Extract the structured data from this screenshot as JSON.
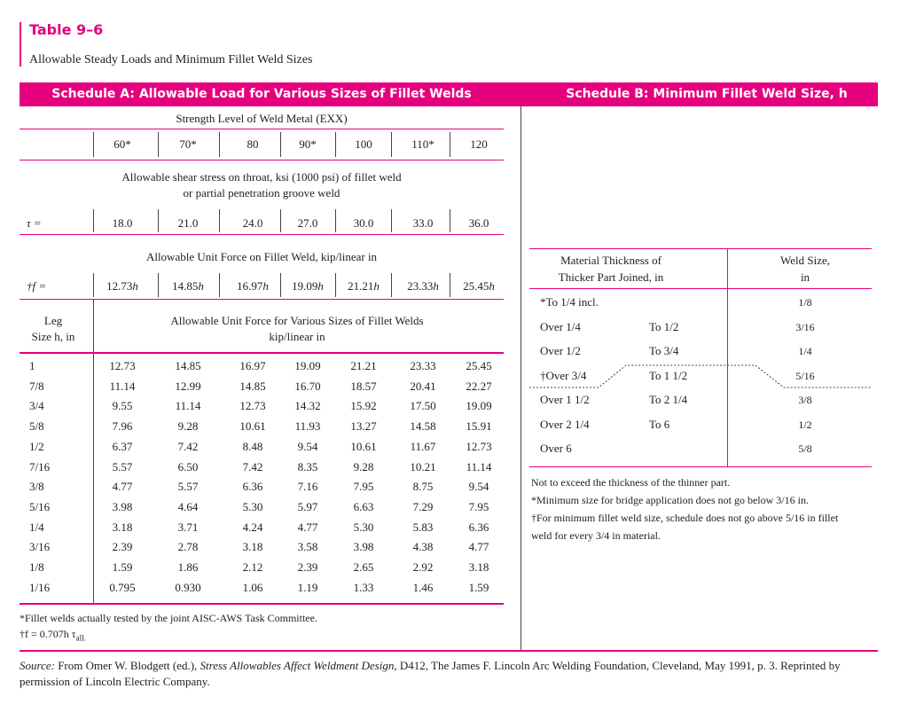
{
  "header": {
    "label": "Table 9–6",
    "title": "Allowable Steady Loads and Minimum Fillet Weld Sizes"
  },
  "schedule_a": {
    "title": "Schedule A: Allowable Load for Various Sizes of Fillet Welds",
    "strength_heading": "Strength Level of Weld Metal (EXX)",
    "strength_levels": [
      "60*",
      "70*",
      "80",
      "90*",
      "100",
      "110*",
      "120"
    ],
    "shear_heading": [
      "Allowable shear stress on throat, ksi (1000 psi) of fillet weld",
      "or partial penetration groove weld"
    ],
    "tau_label": "τ =",
    "tau_values": [
      "18.0",
      "21.0",
      "24.0",
      "27.0",
      "30.0",
      "33.0",
      "36.0"
    ],
    "unit_force_heading": "Allowable Unit Force on Fillet Weld, kip/linear in",
    "f_label": "†f =",
    "f_values": [
      "12.73",
      "14.85",
      "16.97",
      "19.09",
      "21.21",
      "23.33",
      "25.45"
    ],
    "f_symbol": "h",
    "leg_heading": [
      "Leg",
      "Size h, in"
    ],
    "table_heading": [
      "Allowable Unit Force for Various Sizes of Fillet Welds",
      "kip/linear in"
    ],
    "rows": [
      [
        "1",
        "12.73",
        "14.85",
        "16.97",
        "19.09",
        "21.21",
        "23.33",
        "25.45"
      ],
      [
        "7/8",
        "11.14",
        "12.99",
        "14.85",
        "16.70",
        "18.57",
        "20.41",
        "22.27"
      ],
      [
        "3/4",
        "9.55",
        "11.14",
        "12.73",
        "14.32",
        "15.92",
        "17.50",
        "19.09"
      ],
      [
        "5/8",
        "7.96",
        "9.28",
        "10.61",
        "11.93",
        "13.27",
        "14.58",
        "15.91"
      ],
      [
        "1/2",
        "6.37",
        "7.42",
        "8.48",
        "9.54",
        "10.61",
        "11.67",
        "12.73"
      ],
      [
        "7/16",
        "5.57",
        "6.50",
        "7.42",
        "8.35",
        "9.28",
        "10.21",
        "11.14"
      ],
      [
        "3/8",
        "4.77",
        "5.57",
        "6.36",
        "7.16",
        "7.95",
        "8.75",
        "9.54"
      ],
      [
        "5/16",
        "3.98",
        "4.64",
        "5.30",
        "5.97",
        "6.63",
        "7.29",
        "7.95"
      ],
      [
        "1/4",
        "3.18",
        "3.71",
        "4.24",
        "4.77",
        "5.30",
        "5.83",
        "6.36"
      ],
      [
        "3/16",
        "2.39",
        "2.78",
        "3.18",
        "3.58",
        "3.98",
        "4.38",
        "4.77"
      ],
      [
        "1/8",
        "1.59",
        "1.86",
        "2.12",
        "2.39",
        "2.65",
        "2.92",
        "3.18"
      ],
      [
        "1/16",
        "0.795",
        "0.930",
        "1.06",
        "1.19",
        "1.33",
        "1.46",
        "1.59"
      ]
    ],
    "footnotes": [
      "*Fillet welds actually tested by the joint AISC-AWS Task Committee.",
      {
        "main": "†f = 0.707h τ",
        "sub": "all."
      }
    ]
  },
  "schedule_b": {
    "title": "Schedule B: Minimum Fillet Weld Size, h",
    "thickness_heading": [
      "Material Thickness of",
      "Thicker Part Joined, in"
    ],
    "size_heading": [
      "Weld Size,",
      "in"
    ],
    "rows": [
      {
        "from": "*To 1/4 incl.",
        "size": "1/8"
      },
      {
        "from": "Over 1/4",
        "to": "To 1/2",
        "size": "3/16"
      },
      {
        "from": "Over 1/2",
        "to": "To 3/4",
        "size": "1/4"
      },
      {
        "from": "†Over 3/4",
        "to": "To 1 1/2",
        "size": "5/16"
      },
      {
        "from": "Over 1 1/2",
        "to": "To 2 1/4",
        "size": "3/8"
      },
      {
        "from": "Over 2 1/4",
        "to": "To 6",
        "size": "1/2"
      },
      {
        "from": "Over 6",
        "size": "5/8"
      }
    ],
    "notes": [
      "Not to exceed the thickness of the thinner part.",
      "*Minimum size for bridge application does not go below 3/16 in.",
      "†For minimum fillet weld size, schedule does not go above 5/16 in fillet",
      "weld for every 3/4 in material."
    ]
  },
  "source": {
    "label": "Source:",
    "text": "From Omer W. Blodgett (ed.),",
    "work": "Stress Allowables Affect Weldment Design,",
    "rest": "D412, The James F. Lincoln Arc Welding Foundation, Cleveland, May 1991, p. 3. Reprinted by",
    "rest2": "permission of Lincoln Electric Company."
  }
}
